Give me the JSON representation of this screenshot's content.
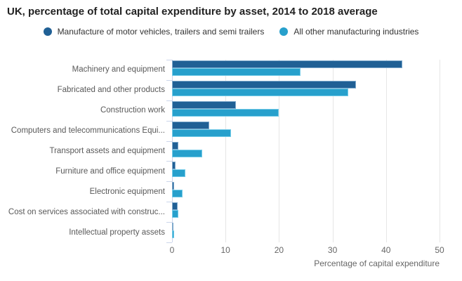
{
  "title": "UK, percentage of total capital expenditure by asset, 2014 to 2018 average",
  "legend": [
    {
      "label": "Manufacture of motor vehicles, trailers and semi trailers",
      "color": "#206095"
    },
    {
      "label": "All other manufacturing industries",
      "color": "#27a0cc"
    }
  ],
  "colors": {
    "series_dark": "#206095",
    "series_light": "#27a0cc",
    "dark_bar_border": "#7fa9cc",
    "light_bar_border": "#74cbe8",
    "axis_line": "#ccd6eb",
    "gridline": "#e6e6e6",
    "title_text": "#222222",
    "label_text": "#595959",
    "axis_text": "#666666"
  },
  "chart_data": {
    "type": "bar",
    "orientation": "horizontal",
    "title": "UK, percentage of total capital expenditure by asset, 2014 to 2018 average",
    "xlabel": "Percentage of capital expenditure",
    "ylabel": "",
    "xlim": [
      0,
      50
    ],
    "xticks": [
      0,
      10,
      20,
      30,
      40,
      50
    ],
    "grid": true,
    "legend_position": "top",
    "categories": [
      "Machinery and equipment",
      "Fabricated and other products",
      "Construction work",
      "Computers and telecommunications Equi...",
      "Transport assets and equipment",
      "Furniture and office equipment",
      "Electronic equipment",
      "Cost on services associated with construc...",
      "Intellectual property assets"
    ],
    "series": [
      {
        "name": "Manufacture of motor vehicles, trailers and semi trailers",
        "color": "#206095",
        "border_color": "#7fa9cc",
        "values": [
          43,
          34.4,
          12,
          7,
          1.2,
          0.7,
          0.4,
          1,
          0.2
        ]
      },
      {
        "name": "All other manufacturing industries",
        "color": "#27a0cc",
        "border_color": "#74cbe8",
        "values": [
          24,
          33,
          20,
          11,
          5.7,
          2.5,
          2,
          1.2,
          0.4
        ]
      }
    ]
  }
}
